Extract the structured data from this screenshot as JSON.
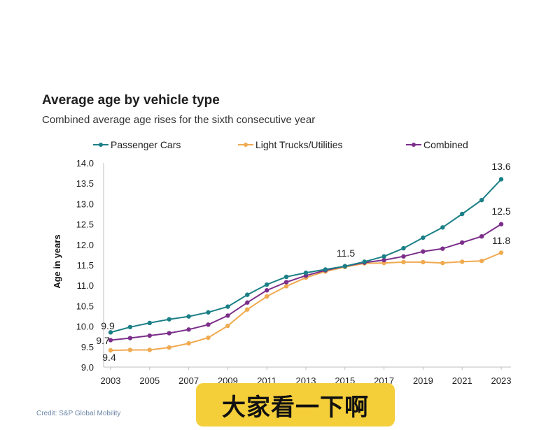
{
  "chart_data": {
    "type": "line",
    "title": "Average age by vehicle type",
    "subtitle": "Combined average age rises for the sixth consecutive year",
    "xlabel": "",
    "ylabel": "Age in years",
    "ylim": [
      9.0,
      14.0
    ],
    "xlim": [
      2003,
      2023
    ],
    "yticks": [
      "9.0",
      "9.5",
      "10.0",
      "10.5",
      "11.0",
      "11.5",
      "12.0",
      "12.5",
      "13.0",
      "13.5",
      "14.0"
    ],
    "xticks": [
      "2003",
      "2005",
      "2007",
      "2009",
      "2011",
      "2013",
      "2015",
      "2017",
      "2019",
      "2021",
      "2023"
    ],
    "grid": false,
    "legend": "top",
    "x": [
      2003,
      2004,
      2005,
      2006,
      2007,
      2008,
      2009,
      2010,
      2011,
      2012,
      2013,
      2014,
      2015,
      2016,
      2017,
      2018,
      2019,
      2020,
      2021,
      2022,
      2023
    ],
    "series": [
      {
        "name": "Passenger Cars",
        "color": "#1b7f86",
        "values": [
          9.85,
          9.98,
          10.08,
          10.17,
          10.24,
          10.34,
          10.48,
          10.77,
          11.02,
          11.21,
          11.31,
          11.39,
          11.47,
          11.58,
          11.71,
          11.91,
          12.17,
          12.42,
          12.75,
          13.09,
          13.6
        ]
      },
      {
        "name": "Light Trucks/Utilities",
        "color": "#f0aa50",
        "values": [
          9.41,
          9.42,
          9.42,
          9.48,
          9.58,
          9.72,
          10.01,
          10.41,
          10.73,
          10.98,
          11.19,
          11.34,
          11.45,
          11.54,
          11.55,
          11.57,
          11.57,
          11.55,
          11.58,
          11.6,
          11.8
        ]
      },
      {
        "name": "Combined",
        "color": "#7b2e8a",
        "values": [
          9.66,
          9.71,
          9.77,
          9.83,
          9.92,
          10.04,
          10.26,
          10.58,
          10.88,
          11.08,
          11.24,
          11.37,
          11.47,
          11.56,
          11.62,
          11.71,
          11.83,
          11.9,
          12.05,
          12.2,
          12.5
        ]
      }
    ],
    "annotations": [
      "9.9",
      "9.7",
      "9.4",
      "11.5",
      "13.6",
      "12.5",
      "11.8"
    ]
  },
  "credit": "Credit: S&P Global Mobility",
  "caption": "大家看一下啊"
}
